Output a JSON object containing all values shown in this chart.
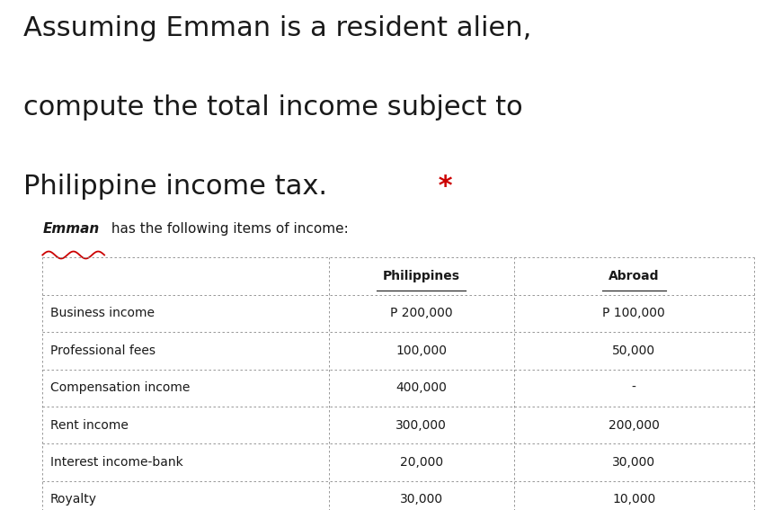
{
  "title_line1": "Assuming Emman is a resident alien,",
  "title_line2": "compute the total income subject to",
  "title_line3": "Philippine income tax.",
  "title_asterisk": " *",
  "subtitle_prefix": "Emman",
  "subtitle_suffix": " has the following items of income:",
  "col_headers": [
    "",
    "Philippines",
    "Abroad"
  ],
  "rows": [
    [
      "Business income",
      "P 200,000",
      "P 100,000"
    ],
    [
      "Professional fees",
      "100,000",
      "50,000"
    ],
    [
      "Compensation income",
      "400,000",
      "-"
    ],
    [
      "Rent income",
      "300,000",
      "200,000"
    ],
    [
      "Interest income-bank",
      "20,000",
      "30,000"
    ],
    [
      "Royalty",
      "30,000",
      "10,000"
    ]
  ],
  "bg_color": "#ffffff",
  "text_color": "#1a1a1a",
  "table_text_color": "#1a1a1a",
  "title_fontsize": 22,
  "subtitle_fontsize": 11,
  "table_fontsize": 10,
  "header_fontsize": 10,
  "asterisk_color": "#cc0000",
  "underline_color": "#cc0000",
  "border_color": "#888888"
}
